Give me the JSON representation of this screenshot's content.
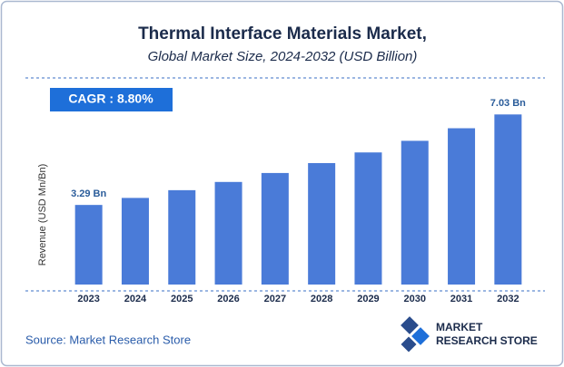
{
  "chart_data": {
    "type": "bar",
    "title": "Thermal Interface Materials Market,",
    "subtitle": "Global Market Size, 2024-2032 (USD Billion)",
    "annotation": "CAGR : 8.80%",
    "y_label": "Revenue (USD Mn/Bn)",
    "categories": [
      "2023",
      "2024",
      "2025",
      "2026",
      "2027",
      "2028",
      "2029",
      "2030",
      "2031",
      "2032"
    ],
    "values": [
      3.29,
      3.58,
      3.9,
      4.24,
      4.61,
      5.02,
      5.46,
      5.94,
      6.46,
      7.03
    ],
    "value_labels": [
      "3.29 Bn",
      null,
      null,
      null,
      null,
      null,
      null,
      null,
      null,
      "7.03 Bn"
    ],
    "color": "#4a7bd8",
    "source": "Source: Market Research Store",
    "logo": [
      "MARKET",
      "RESEARCH STORE"
    ]
  }
}
